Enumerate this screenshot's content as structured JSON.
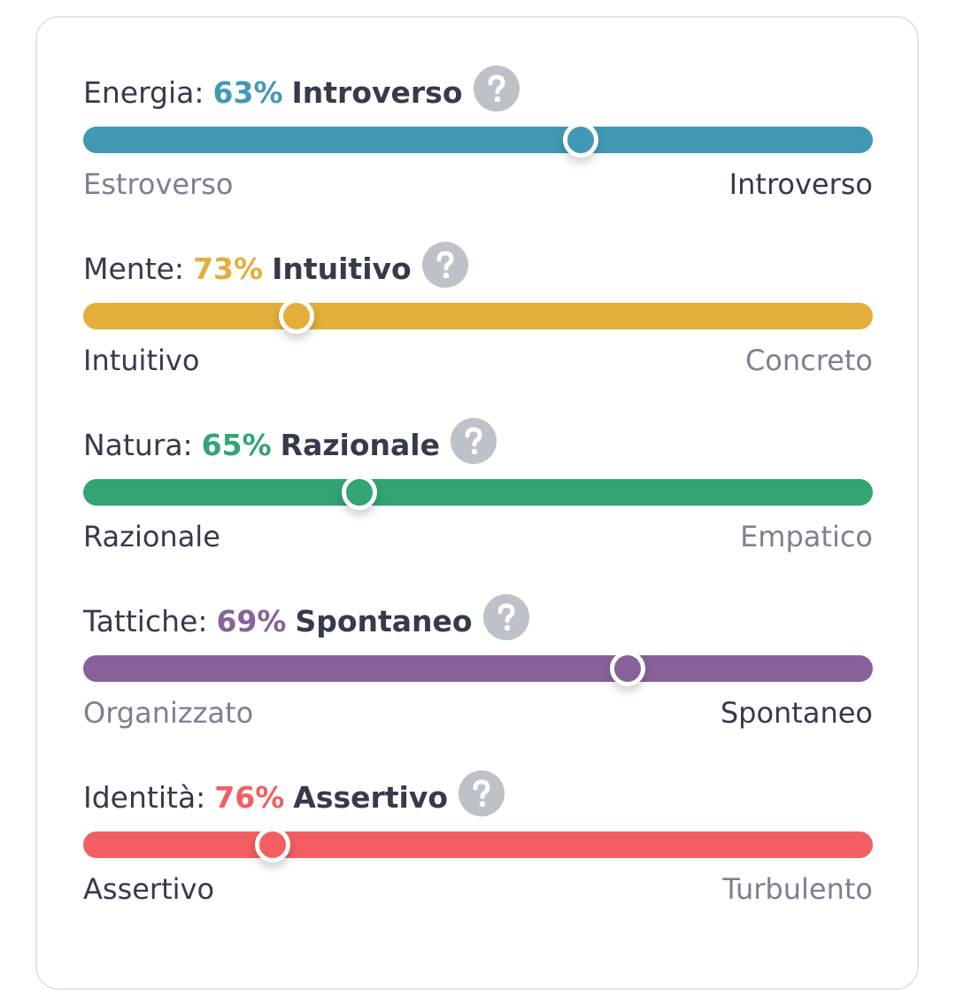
{
  "traits": [
    {
      "label": "Energia:",
      "percent": {
        "value": 63,
        "label": "63%"
      },
      "dominant": "Introverso",
      "left": "Estroverso",
      "right": "Introverso",
      "color": "#4398b4"
    },
    {
      "label": "Mente:",
      "percent": {
        "value": 73,
        "label": "73%"
      },
      "dominant": "Intuitivo",
      "left": "Intuitivo",
      "right": "Concreto",
      "color": "#e4ae3a"
    },
    {
      "label": "Natura:",
      "percent": {
        "value": 65,
        "label": "65%"
      },
      "dominant": "Razionale",
      "left": "Razionale",
      "right": "Empatico",
      "color": "#33a474"
    },
    {
      "label": "Tattiche:",
      "percent": {
        "value": 69,
        "label": "69%"
      },
      "dominant": "Spontaneo",
      "left": "Organizzato",
      "right": "Spontaneo",
      "color": "#88619a"
    },
    {
      "label": "Identità:",
      "percent": {
        "value": 76,
        "label": "76%"
      },
      "dominant": "Assertivo",
      "left": "Assertivo",
      "right": "Turbulento",
      "color": "#f25e62"
    }
  ]
}
